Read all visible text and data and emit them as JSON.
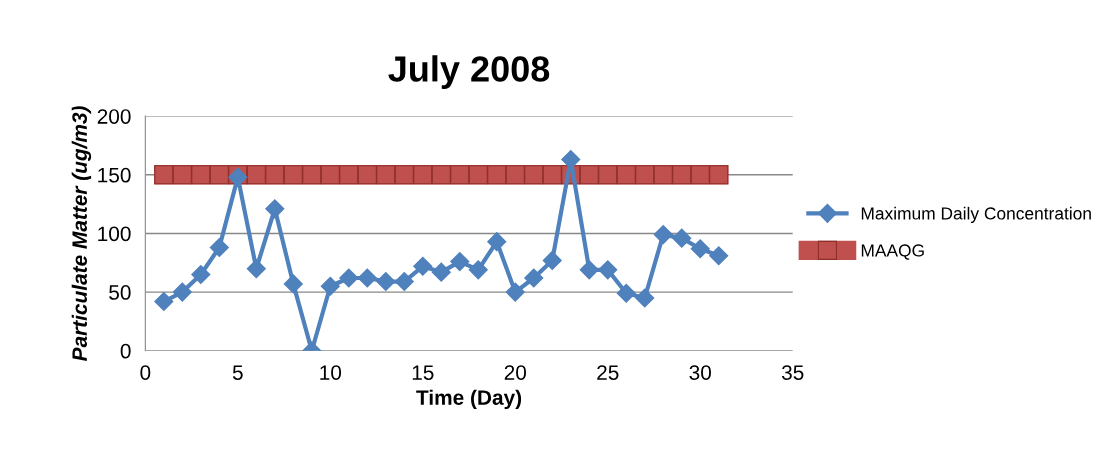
{
  "chart_data": {
    "type": "line",
    "title": "July 2008",
    "xlabel": "Time (Day)",
    "ylabel": "Particulate Matter (ug/m3)",
    "x": [
      1,
      2,
      3,
      4,
      5,
      6,
      7,
      8,
      9,
      10,
      11,
      12,
      13,
      14,
      15,
      16,
      17,
      18,
      19,
      20,
      21,
      22,
      23,
      24,
      25,
      26,
      27,
      28,
      29,
      30,
      31
    ],
    "series": [
      {
        "name": "Maximum Daily Concentration",
        "color": "#4f81bd",
        "marker": "diamond",
        "values": [
          42,
          50,
          65,
          88,
          148,
          70,
          121,
          57,
          0,
          55,
          62,
          62,
          59,
          59,
          72,
          67,
          76,
          69,
          93,
          50,
          62,
          77,
          163,
          69,
          69,
          49,
          45,
          99,
          96,
          87,
          81
        ]
      },
      {
        "name": "MAAQG",
        "color": "#c0504d",
        "marker": "square",
        "values": [
          150,
          150,
          150,
          150,
          150,
          150,
          150,
          150,
          150,
          150,
          150,
          150,
          150,
          150,
          150,
          150,
          150,
          150,
          150,
          150,
          150,
          150,
          150,
          150,
          150,
          150,
          150,
          150,
          150,
          150,
          150
        ]
      }
    ],
    "xlim": [
      0,
      35
    ],
    "xticks": [
      0,
      5,
      10,
      15,
      20,
      25,
      30,
      35
    ],
    "ylim": [
      0,
      200
    ],
    "yticks": [
      0,
      50,
      100,
      150,
      200
    ],
    "grid": "y",
    "legend": "right",
    "line_style": "solid"
  }
}
